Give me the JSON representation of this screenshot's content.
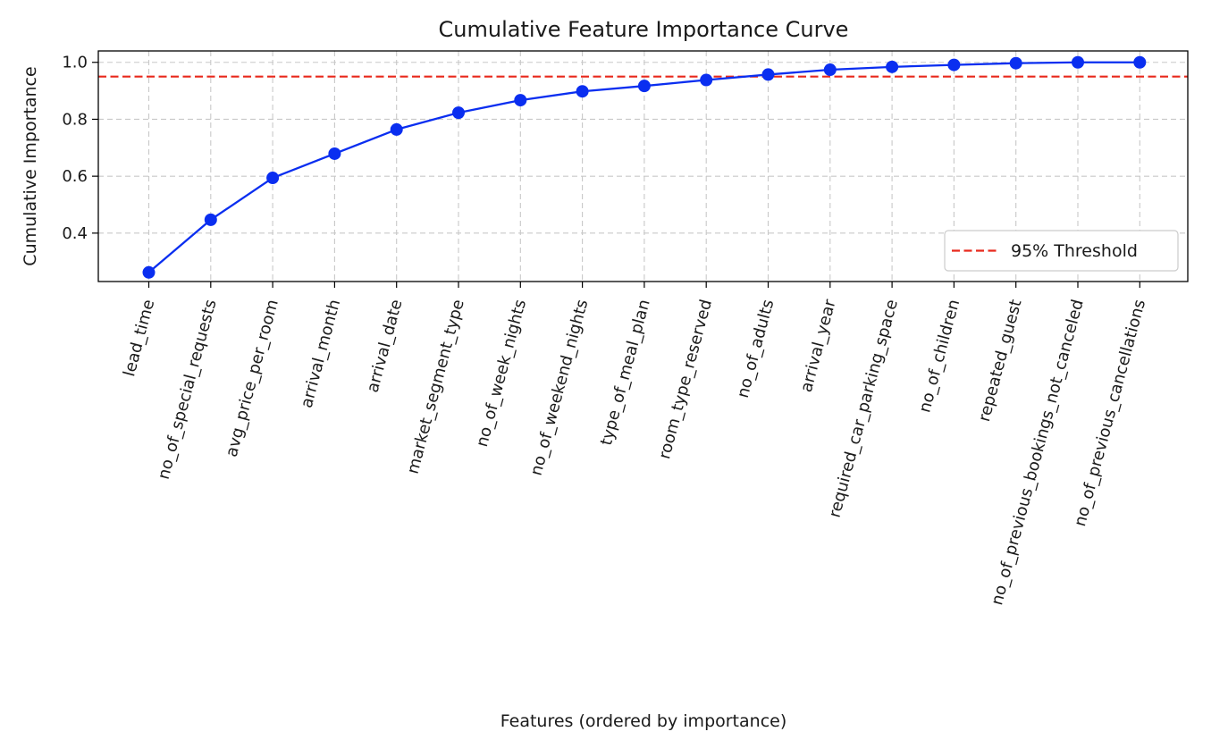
{
  "chart_data": {
    "type": "line",
    "title": "Cumulative Feature Importance Curve",
    "xlabel": "Features (ordered by importance)",
    "ylabel": "Cumulative Importance",
    "categories": [
      "lead_time",
      "no_of_special_requests",
      "avg_price_per_room",
      "arrival_month",
      "arrival_date",
      "market_segment_type",
      "no_of_week_nights",
      "no_of_weekend_nights",
      "type_of_meal_plan",
      "room_type_reserved",
      "no_of_adults",
      "arrival_year",
      "required_car_parking_space",
      "no_of_children",
      "repeated_guest",
      "no_of_previous_bookings_not_canceled",
      "no_of_previous_cancellations"
    ],
    "series": [
      {
        "values": [
          0.262,
          0.447,
          0.594,
          0.679,
          0.764,
          0.823,
          0.867,
          0.898,
          0.917,
          0.938,
          0.957,
          0.974,
          0.984,
          0.991,
          0.997,
          1.0,
          1.0
        ],
        "color": "#0a2ef0",
        "marker": "circle"
      }
    ],
    "threshold": {
      "value": 0.95,
      "label": "95% Threshold",
      "color": "#e8291c",
      "style": "dashed"
    },
    "ylim": [
      0.23,
      1.04
    ],
    "yticks": [
      0.4,
      0.6,
      0.8,
      1.0
    ],
    "ytick_labels": [
      "0.4",
      "0.6",
      "0.8",
      "1.0"
    ],
    "grid": true,
    "legend_position": "lower-right"
  }
}
